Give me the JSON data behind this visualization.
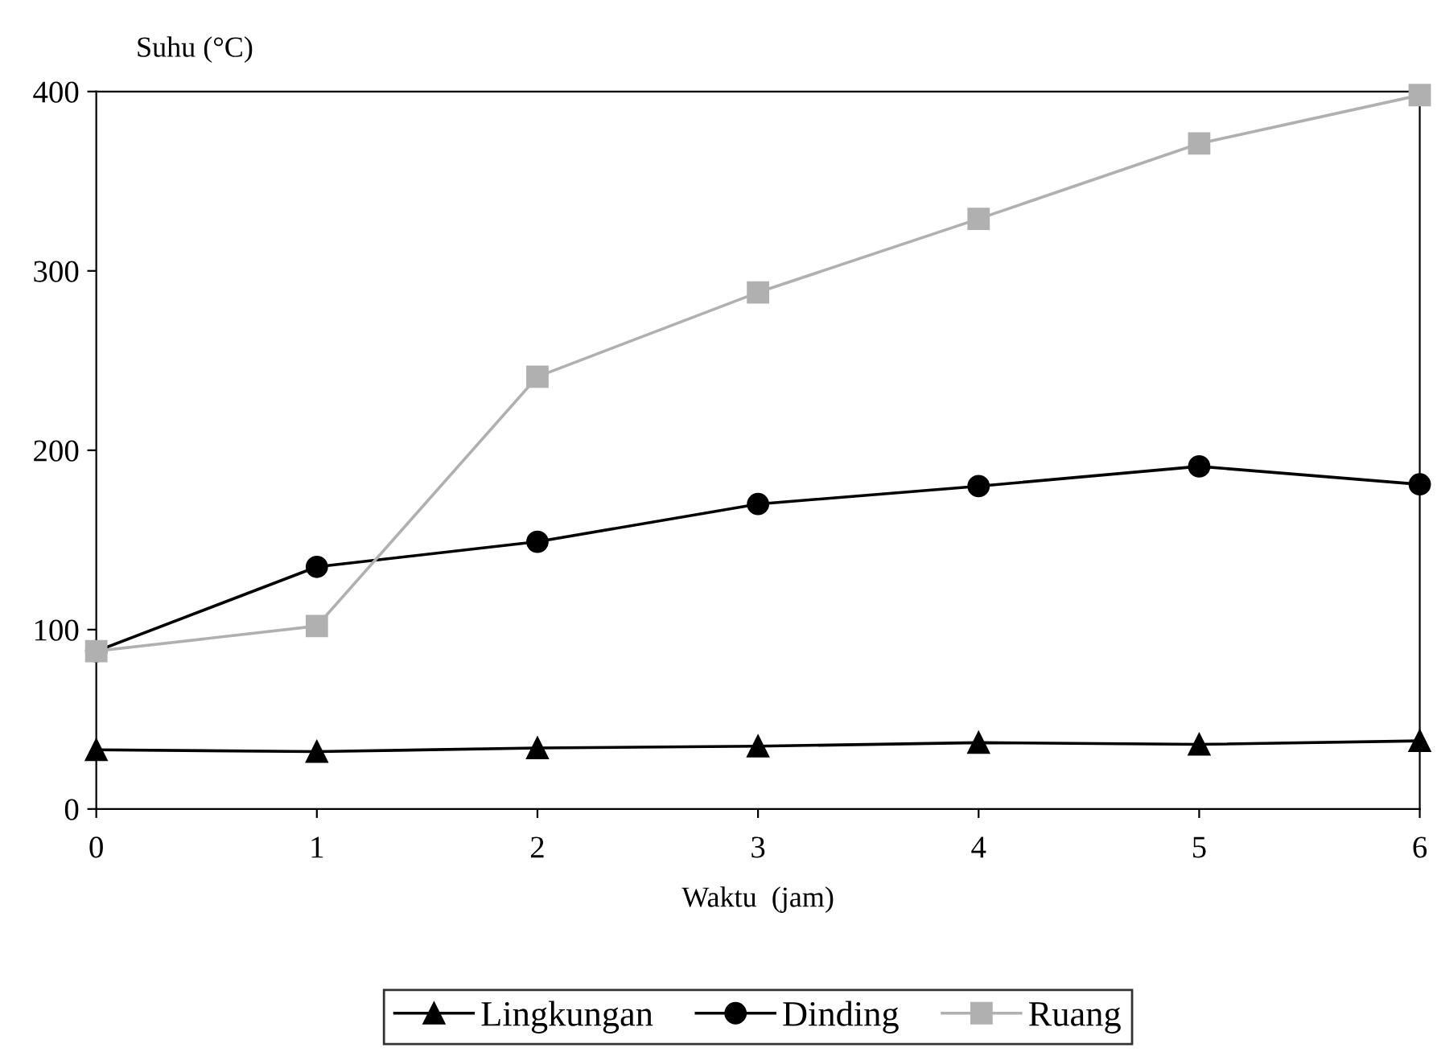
{
  "chart_data": {
    "type": "line",
    "ylabel": "Suhu (°C)",
    "xlabel": "Waktu  (jam)",
    "x": [
      0,
      1,
      2,
      3,
      4,
      5,
      6
    ],
    "xlim": [
      0,
      6
    ],
    "xticks": [
      0,
      1,
      2,
      3,
      4,
      5,
      6
    ],
    "ylim": [
      0,
      400
    ],
    "yticks": [
      0,
      100,
      200,
      300,
      400
    ],
    "grid": false,
    "legend": "bottom",
    "series": [
      {
        "name": "Lingkungan",
        "color": "#000000",
        "marker": "triangle",
        "values": [
          33,
          32,
          34,
          35,
          37,
          36,
          38
        ]
      },
      {
        "name": "Dinding",
        "color": "#000000",
        "marker": "circle",
        "values": [
          88,
          135,
          149,
          170,
          180,
          191,
          181
        ]
      },
      {
        "name": "Ruang",
        "color": "#b0b0b0",
        "marker": "square",
        "values": [
          88,
          102,
          241,
          288,
          329,
          371,
          398
        ]
      }
    ]
  }
}
